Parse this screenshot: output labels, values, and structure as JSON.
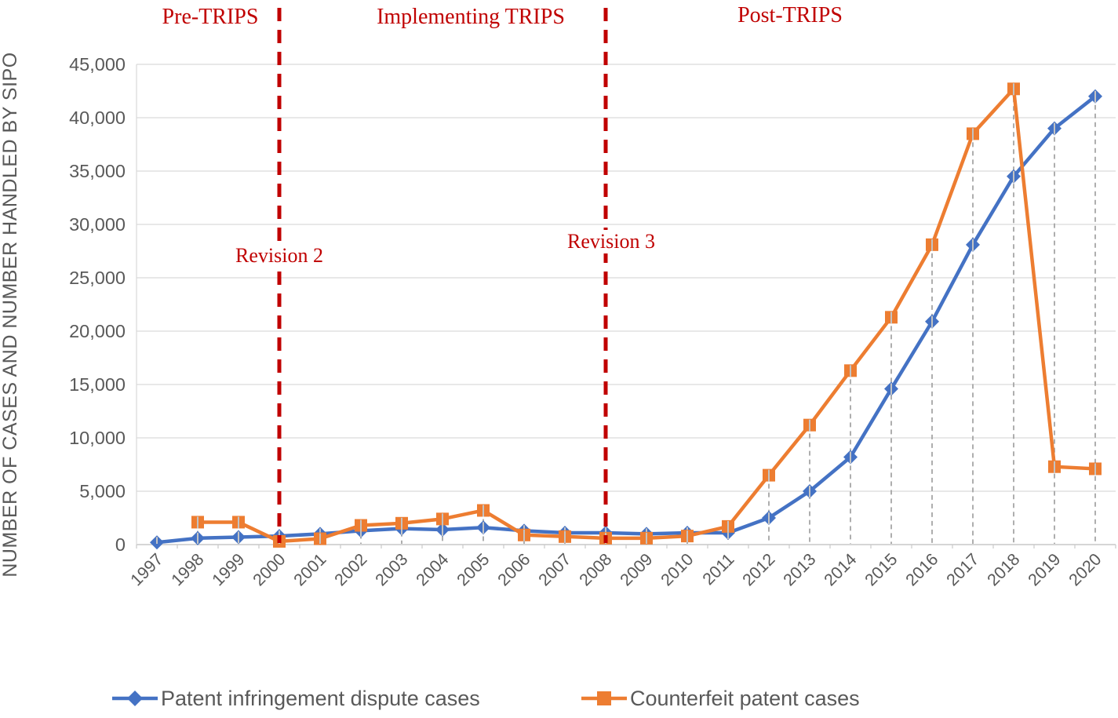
{
  "chart_data": {
    "type": "line",
    "title": "",
    "xlabel": "",
    "ylabel": "NUMBER OF CASES AND NUMBER HANDLED BY SIPO",
    "ylim": [
      0,
      45000
    ],
    "ytick_step": 5000,
    "grid": true,
    "legend_position": "bottom",
    "categories": [
      "1997",
      "1998",
      "1999",
      "2000",
      "2001",
      "2002",
      "2003",
      "2004",
      "2005",
      "2006",
      "2007",
      "2008",
      "2009",
      "2010",
      "2011",
      "2012",
      "2013",
      "2014",
      "2015",
      "2016",
      "2017",
      "2018",
      "2019",
      "2020"
    ],
    "series": [
      {
        "name": "Patent infringement dispute cases",
        "color": "#4472C4",
        "marker": "diamond",
        "values": [
          200,
          600,
          700,
          800,
          1000,
          1300,
          1500,
          1400,
          1600,
          1300,
          1100,
          1100,
          1000,
          1100,
          1100,
          2500,
          5000,
          8200,
          14600,
          20900,
          28100,
          34500,
          39000,
          42000
        ]
      },
      {
        "name": "Counterfeit patent cases",
        "color": "#ED7D31",
        "marker": "square",
        "values": [
          null,
          2100,
          2100,
          300,
          550,
          1800,
          2000,
          2400,
          3200,
          900,
          750,
          600,
          600,
          800,
          1700,
          6500,
          11200,
          16300,
          21300,
          28100,
          38500,
          42700,
          7300,
          7100
        ]
      }
    ],
    "vlines": [
      {
        "year": "2000",
        "label": "Revision 2",
        "color": "#C00000"
      },
      {
        "year": "2008",
        "label": "Revision 3",
        "color": "#C00000"
      }
    ],
    "phase_labels": [
      {
        "label": "Pre-TRIPS",
        "color": "#C00000"
      },
      {
        "label": "Implementing TRIPS",
        "color": "#C00000"
      },
      {
        "label": "Post-TRIPS",
        "color": "#C00000"
      }
    ],
    "colors": {
      "grid": "#D9D9D9",
      "axis": "#C9C9C9",
      "tick_text": "#595959",
      "drop_line": "#A6A6A6"
    }
  }
}
